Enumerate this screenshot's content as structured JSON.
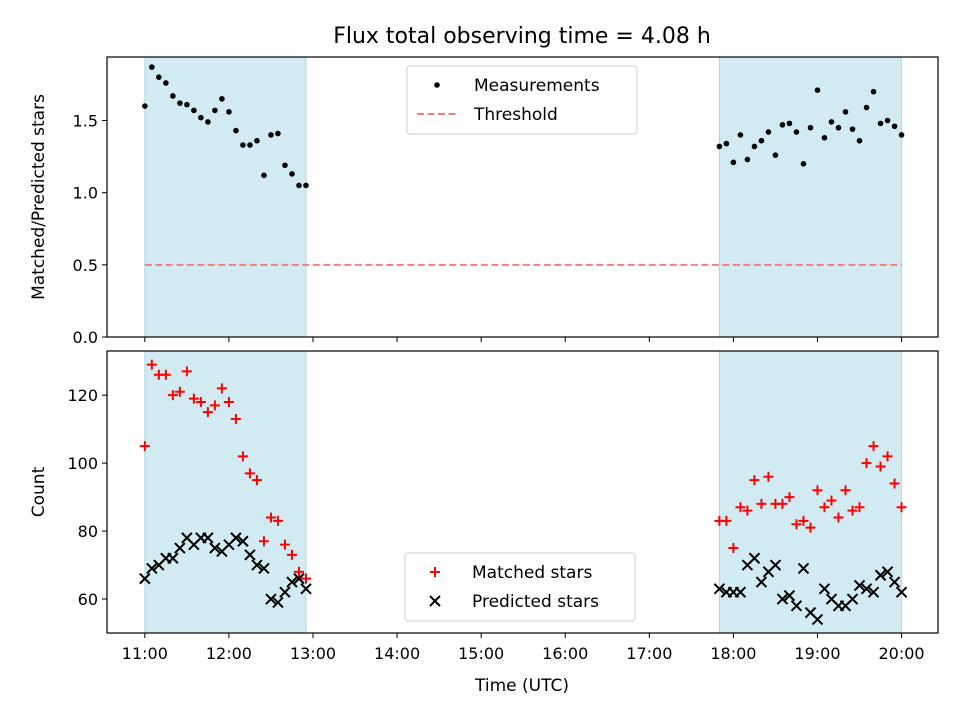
{
  "chart_data": {
    "title": "Flux total observing time = 4.08 h",
    "xlabel": "Time (UTC)",
    "x_ticks": [
      "11:00",
      "12:00",
      "13:00",
      "14:00",
      "15:00",
      "16:00",
      "17:00",
      "18:00",
      "19:00",
      "20:00"
    ],
    "xlim": [
      "10:33",
      "20:26"
    ],
    "shaded_intervals": [
      [
        "11:00",
        "12:55"
      ],
      [
        "17:50",
        "20:00"
      ]
    ],
    "shade_color": "#add8e6",
    "panels": [
      {
        "type": "scatter",
        "ylabel": "Matched/Predicted stars",
        "ylim": [
          0,
          1.94
        ],
        "y_ticks": [
          "0.0",
          "0.5",
          "1.0",
          "1.5"
        ],
        "y_tick_values": [
          0,
          0.5,
          1.0,
          1.5
        ],
        "legend_position": "top-center",
        "threshold": {
          "name": "Threshold",
          "value": 0.5,
          "color": "#f08080",
          "style": "dashed"
        },
        "series": [
          {
            "name": "Measurements",
            "color": "#000000",
            "marker": "dot",
            "points": [
              [
                "11:00",
                1.6
              ],
              [
                "11:05",
                1.87
              ],
              [
                "11:10",
                1.8
              ],
              [
                "11:15",
                1.76
              ],
              [
                "11:20",
                1.67
              ],
              [
                "11:25",
                1.62
              ],
              [
                "11:30",
                1.61
              ],
              [
                "11:35",
                1.57
              ],
              [
                "11:40",
                1.52
              ],
              [
                "11:45",
                1.49
              ],
              [
                "11:50",
                1.57
              ],
              [
                "11:55",
                1.65
              ],
              [
                "12:00",
                1.56
              ],
              [
                "12:05",
                1.43
              ],
              [
                "12:10",
                1.33
              ],
              [
                "12:15",
                1.33
              ],
              [
                "12:20",
                1.36
              ],
              [
                "12:25",
                1.12
              ],
              [
                "12:30",
                1.4
              ],
              [
                "12:35",
                1.41
              ],
              [
                "12:40",
                1.19
              ],
              [
                "12:45",
                1.13
              ],
              [
                "12:50",
                1.05
              ],
              [
                "12:55",
                1.05
              ],
              [
                "17:50",
                1.32
              ],
              [
                "17:55",
                1.34
              ],
              [
                "18:00",
                1.21
              ],
              [
                "18:05",
                1.4
              ],
              [
                "18:10",
                1.23
              ],
              [
                "18:15",
                1.32
              ],
              [
                "18:20",
                1.36
              ],
              [
                "18:25",
                1.42
              ],
              [
                "18:30",
                1.26
              ],
              [
                "18:35",
                1.47
              ],
              [
                "18:40",
                1.48
              ],
              [
                "18:45",
                1.42
              ],
              [
                "18:50",
                1.2
              ],
              [
                "18:55",
                1.45
              ],
              [
                "19:00",
                1.71
              ],
              [
                "19:05",
                1.38
              ],
              [
                "19:10",
                1.49
              ],
              [
                "19:15",
                1.45
              ],
              [
                "19:20",
                1.56
              ],
              [
                "19:25",
                1.44
              ],
              [
                "19:30",
                1.36
              ],
              [
                "19:35",
                1.59
              ],
              [
                "19:40",
                1.7
              ],
              [
                "19:45",
                1.48
              ],
              [
                "19:50",
                1.5
              ],
              [
                "19:55",
                1.46
              ],
              [
                "20:00",
                1.4
              ]
            ]
          }
        ]
      },
      {
        "type": "scatter",
        "ylabel": "Count",
        "ylim": [
          50,
          133
        ],
        "y_ticks": [
          "60",
          "80",
          "100",
          "120"
        ],
        "y_tick_values": [
          60,
          80,
          100,
          120
        ],
        "legend_position": "bottom-center",
        "series": [
          {
            "name": "Matched stars",
            "color": "#ff0000",
            "marker": "plus",
            "points": [
              [
                "11:00",
                105
              ],
              [
                "11:05",
                129
              ],
              [
                "11:10",
                126
              ],
              [
                "11:15",
                126
              ],
              [
                "11:20",
                120
              ],
              [
                "11:25",
                121
              ],
              [
                "11:30",
                127
              ],
              [
                "11:35",
                119
              ],
              [
                "11:40",
                118
              ],
              [
                "11:45",
                115
              ],
              [
                "11:50",
                117
              ],
              [
                "11:55",
                122
              ],
              [
                "12:00",
                118
              ],
              [
                "12:05",
                113
              ],
              [
                "12:10",
                102
              ],
              [
                "12:15",
                97
              ],
              [
                "12:20",
                95
              ],
              [
                "12:25",
                77
              ],
              [
                "12:30",
                84
              ],
              [
                "12:35",
                83
              ],
              [
                "12:40",
                76
              ],
              [
                "12:45",
                73
              ],
              [
                "12:50",
                68
              ],
              [
                "12:55",
                66
              ],
              [
                "17:50",
                83
              ],
              [
                "17:55",
                83
              ],
              [
                "18:00",
                75
              ],
              [
                "18:05",
                87
              ],
              [
                "18:10",
                86
              ],
              [
                "18:15",
                95
              ],
              [
                "18:20",
                88
              ],
              [
                "18:25",
                96
              ],
              [
                "18:30",
                88
              ],
              [
                "18:35",
                88
              ],
              [
                "18:40",
                90
              ],
              [
                "18:45",
                82
              ],
              [
                "18:50",
                83
              ],
              [
                "18:55",
                81
              ],
              [
                "19:00",
                92
              ],
              [
                "19:05",
                87
              ],
              [
                "19:10",
                89
              ],
              [
                "19:15",
                84
              ],
              [
                "19:20",
                92
              ],
              [
                "19:25",
                86
              ],
              [
                "19:30",
                87
              ],
              [
                "19:35",
                100
              ],
              [
                "19:40",
                105
              ],
              [
                "19:45",
                99
              ],
              [
                "19:50",
                102
              ],
              [
                "19:55",
                94
              ],
              [
                "20:00",
                87
              ]
            ]
          },
          {
            "name": "Predicted stars",
            "color": "#000000",
            "marker": "x",
            "points": [
              [
                "11:00",
                66
              ],
              [
                "11:05",
                69
              ],
              [
                "11:10",
                70
              ],
              [
                "11:15",
                72
              ],
              [
                "11:20",
                72
              ],
              [
                "11:25",
                75
              ],
              [
                "11:30",
                78
              ],
              [
                "11:35",
                76
              ],
              [
                "11:40",
                78
              ],
              [
                "11:45",
                78
              ],
              [
                "11:50",
                75
              ],
              [
                "11:55",
                74
              ],
              [
                "12:00",
                76
              ],
              [
                "12:05",
                78
              ],
              [
                "12:10",
                77
              ],
              [
                "12:15",
                73
              ],
              [
                "12:20",
                70
              ],
              [
                "12:25",
                69
              ],
              [
                "12:30",
                60
              ],
              [
                "12:35",
                59
              ],
              [
                "12:40",
                62
              ],
              [
                "12:45",
                65
              ],
              [
                "12:50",
                66
              ],
              [
                "12:55",
                63
              ],
              [
                "17:50",
                63
              ],
              [
                "17:55",
                62
              ],
              [
                "18:00",
                62
              ],
              [
                "18:05",
                62
              ],
              [
                "18:10",
                70
              ],
              [
                "18:15",
                72
              ],
              [
                "18:20",
                65
              ],
              [
                "18:25",
                68
              ],
              [
                "18:30",
                70
              ],
              [
                "18:35",
                60
              ],
              [
                "18:40",
                61
              ],
              [
                "18:45",
                58
              ],
              [
                "18:50",
                69
              ],
              [
                "18:55",
                56
              ],
              [
                "19:00",
                54
              ],
              [
                "19:05",
                63
              ],
              [
                "19:10",
                60
              ],
              [
                "19:15",
                58
              ],
              [
                "19:20",
                58
              ],
              [
                "19:25",
                60
              ],
              [
                "19:30",
                64
              ],
              [
                "19:35",
                63
              ],
              [
                "19:40",
                62
              ],
              [
                "19:45",
                67
              ],
              [
                "19:50",
                68
              ],
              [
                "19:55",
                65
              ],
              [
                "20:00",
                62
              ]
            ]
          }
        ]
      }
    ]
  }
}
